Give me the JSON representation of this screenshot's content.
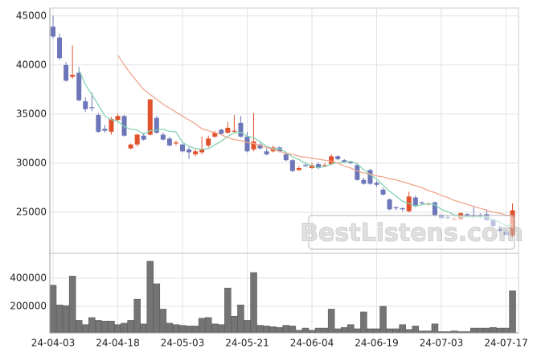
{
  "chart_data": [
    {
      "type": "candlestick",
      "open": [
        43900,
        42800,
        40000,
        38800,
        39200,
        36300,
        35700,
        34900,
        33500,
        33200,
        34400,
        34800,
        31500,
        31900,
        32800,
        32900,
        34600,
        32900,
        32500,
        32000,
        31900,
        31400,
        30900,
        31100,
        31800,
        32700,
        33400,
        33100,
        33200,
        34100,
        32700,
        31400,
        31900,
        31200,
        31200,
        31600,
        30900,
        30300,
        29300,
        29800,
        29500,
        29900,
        29700,
        29900,
        30700,
        30300,
        30100,
        29800,
        28300,
        29300,
        28000,
        27300,
        26300,
        25500,
        25400,
        25100,
        26500,
        26000,
        25800,
        26000,
        24700,
        24500,
        24300,
        24300,
        24800,
        24700,
        24700,
        24800,
        24200,
        23300,
        23000,
        22600
      ],
      "high": [
        45000,
        43200,
        40300,
        42000,
        39800,
        36700,
        37200,
        35100,
        33900,
        34700,
        35000,
        34900,
        32000,
        33000,
        33100,
        36500,
        34800,
        33100,
        32700,
        32300,
        32000,
        31600,
        31400,
        32700,
        32800,
        33300,
        33500,
        34200,
        34900,
        34800,
        33200,
        35100,
        32100,
        31500,
        31800,
        31700,
        31000,
        30400,
        29700,
        30100,
        30000,
        30100,
        30000,
        30900,
        30800,
        30400,
        30200,
        30000,
        28500,
        29400,
        28200,
        27500,
        26400,
        25600,
        25500,
        27100,
        26700,
        26100,
        26000,
        26100,
        24800,
        24700,
        24500,
        25000,
        24900,
        25600,
        24900,
        25300,
        24300,
        23600,
        23200,
        25900
      ],
      "low": [
        42700,
        40500,
        38300,
        38600,
        36300,
        35200,
        35300,
        33100,
        33100,
        32900,
        34200,
        32700,
        31400,
        31700,
        32300,
        32800,
        33000,
        32300,
        31700,
        31800,
        31100,
        30400,
        30700,
        30900,
        31600,
        32600,
        32900,
        33000,
        33100,
        32600,
        31100,
        31200,
        31400,
        30800,
        31100,
        31100,
        30200,
        29100,
        29200,
        29600,
        29400,
        29400,
        29600,
        29800,
        30300,
        30000,
        29900,
        28200,
        27800,
        27800,
        27600,
        26700,
        25200,
        25200,
        25100,
        25000,
        25500,
        25800,
        25700,
        24600,
        24300,
        24300,
        24200,
        24200,
        24500,
        24400,
        24400,
        24100,
        23500,
        23000,
        22600,
        22500
      ],
      "close": [
        42900,
        40700,
        38400,
        39000,
        36400,
        35500,
        35600,
        33200,
        33300,
        34500,
        34800,
        32800,
        31900,
        32900,
        32400,
        36500,
        33100,
        32400,
        31800,
        32100,
        31200,
        31100,
        31200,
        31400,
        32500,
        33100,
        33000,
        33600,
        33300,
        32700,
        31200,
        32200,
        31500,
        30900,
        31600,
        31200,
        30300,
        29200,
        29500,
        29700,
        29800,
        29500,
        29800,
        30700,
        30400,
        30100,
        30000,
        28300,
        27900,
        27900,
        27800,
        26800,
        25300,
        25400,
        25300,
        26600,
        25600,
        25900,
        25900,
        24700,
        24400,
        24400,
        24300,
        24900,
        24600,
        24500,
        24500,
        24200,
        23600,
        23100,
        22700,
        25200
      ],
      "up_color": "#e0522c",
      "down_color": "#6c76b8",
      "series": [
        {
          "color": "#86d3b4",
          "values": [
            null,
            null,
            null,
            null,
            39480,
            38000,
            36980,
            35940,
            34800,
            34420,
            34280,
            33720,
            33460,
            33380,
            32960,
            33300,
            33360,
            33460,
            33240,
            33180,
            32120,
            31720,
            31480,
            31400,
            31480,
            31860,
            32240,
            32720,
            33100,
            33140,
            32760,
            32600,
            32180,
            31700,
            31480,
            31480,
            31100,
            30640,
            30360,
            29980,
            29700,
            29540,
            29660,
            29900,
            30040,
            30100,
            30200,
            29900,
            29340,
            28840,
            28380,
            27740,
            27140,
            26640,
            26120,
            25880,
            25640,
            25760,
            25860,
            25740,
            25300,
            25060,
            24740,
            24540,
            24520,
            24540,
            24560,
            24540,
            24280,
            23980,
            23620,
            23760
          ]
        },
        {
          "color": "#f0a68e",
          "values": [
            null,
            null,
            null,
            null,
            null,
            null,
            null,
            null,
            null,
            null,
            41000,
            40000,
            39100,
            38300,
            37500,
            37000,
            36500,
            36000,
            35600,
            35200,
            34800,
            34400,
            34000,
            33500,
            33300,
            33100,
            32900,
            32600,
            32400,
            32300,
            32100,
            32000,
            31800,
            31600,
            31400,
            31200,
            31000,
            30900,
            30700,
            30600,
            30500,
            30400,
            30300,
            30200,
            30000,
            29700,
            29500,
            29200,
            29000,
            28900,
            28700,
            28600,
            28400,
            28300,
            28100,
            27900,
            27700,
            27500,
            27200,
            27000,
            26700,
            26500,
            26200,
            26000,
            25800,
            25600,
            25400,
            25200,
            25000,
            24900,
            24700,
            24600
          ]
        }
      ],
      "ylim": [
        20900,
        45800
      ],
      "yticks": [
        25000,
        30000,
        35000,
        40000,
        45000
      ],
      "grid": true,
      "watermark": "BestListens.com"
    },
    {
      "type": "bar",
      "categories": [
        "24-04-03",
        null,
        null,
        null,
        null,
        null,
        null,
        null,
        null,
        null,
        "24-04-18",
        null,
        null,
        null,
        null,
        null,
        null,
        null,
        null,
        null,
        "24-05-03",
        null,
        null,
        null,
        null,
        null,
        null,
        null,
        null,
        null,
        "24-05-21",
        null,
        null,
        null,
        null,
        null,
        null,
        null,
        null,
        null,
        "24-06-04",
        null,
        null,
        null,
        null,
        null,
        null,
        null,
        null,
        null,
        "24-06-19",
        null,
        null,
        null,
        null,
        null,
        null,
        null,
        null,
        null,
        "24-07-03",
        null,
        null,
        null,
        null,
        null,
        null,
        null,
        null,
        null,
        "24-07-17",
        null
      ],
      "values": [
        350000,
        210000,
        205000,
        415000,
        100000,
        70000,
        120000,
        100000,
        95000,
        95000,
        70000,
        80000,
        100000,
        250000,
        75000,
        520000,
        360000,
        180000,
        80000,
        70000,
        65000,
        60000,
        60000,
        115000,
        120000,
        75000,
        70000,
        330000,
        130000,
        210000,
        100000,
        440000,
        65000,
        60000,
        55000,
        50000,
        65000,
        60000,
        30000,
        45000,
        30000,
        45000,
        45000,
        180000,
        40000,
        50000,
        70000,
        40000,
        160000,
        40000,
        40000,
        200000,
        40000,
        40000,
        70000,
        35000,
        60000,
        25000,
        25000,
        75000,
        20000,
        20000,
        25000,
        20000,
        20000,
        45000,
        45000,
        45000,
        50000,
        45000,
        45000,
        310000
      ],
      "color": "#747474",
      "ylim": [
        11000,
        571000
      ],
      "yticks": [
        200000,
        400000
      ],
      "grid": true
    }
  ]
}
